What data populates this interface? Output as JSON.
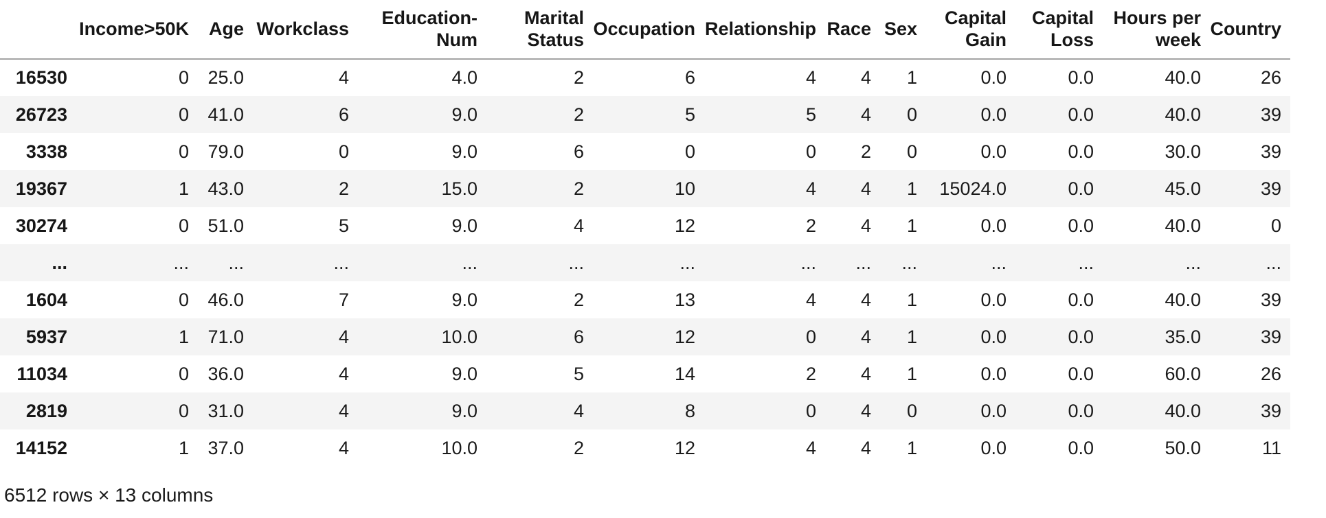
{
  "table": {
    "index_header": "",
    "columns": [
      "Income>50K",
      "Age",
      "Workclass",
      "Education-\nNum",
      "Marital\nStatus",
      "Occupation",
      "Relationship",
      "Race",
      "Sex",
      "Capital\nGain",
      "Capital\nLoss",
      "Hours per\nweek",
      "Country"
    ],
    "rows": [
      {
        "index": "16530",
        "cells": [
          "0",
          "25.0",
          "4",
          "4.0",
          "2",
          "6",
          "4",
          "4",
          "1",
          "0.0",
          "0.0",
          "40.0",
          "26"
        ]
      },
      {
        "index": "26723",
        "cells": [
          "0",
          "41.0",
          "6",
          "9.0",
          "2",
          "5",
          "5",
          "4",
          "0",
          "0.0",
          "0.0",
          "40.0",
          "39"
        ]
      },
      {
        "index": "3338",
        "cells": [
          "0",
          "79.0",
          "0",
          "9.0",
          "6",
          "0",
          "0",
          "2",
          "0",
          "0.0",
          "0.0",
          "30.0",
          "39"
        ]
      },
      {
        "index": "19367",
        "cells": [
          "1",
          "43.0",
          "2",
          "15.0",
          "2",
          "10",
          "4",
          "4",
          "1",
          "15024.0",
          "0.0",
          "45.0",
          "39"
        ]
      },
      {
        "index": "30274",
        "cells": [
          "0",
          "51.0",
          "5",
          "9.0",
          "4",
          "12",
          "2",
          "4",
          "1",
          "0.0",
          "0.0",
          "40.0",
          "0"
        ]
      },
      {
        "index": "...",
        "cells": [
          "...",
          "...",
          "...",
          "...",
          "...",
          "...",
          "...",
          "...",
          "...",
          "...",
          "...",
          "...",
          "..."
        ]
      },
      {
        "index": "1604",
        "cells": [
          "0",
          "46.0",
          "7",
          "9.0",
          "2",
          "13",
          "4",
          "4",
          "1",
          "0.0",
          "0.0",
          "40.0",
          "39"
        ]
      },
      {
        "index": "5937",
        "cells": [
          "1",
          "71.0",
          "4",
          "10.0",
          "6",
          "12",
          "0",
          "4",
          "1",
          "0.0",
          "0.0",
          "35.0",
          "39"
        ]
      },
      {
        "index": "11034",
        "cells": [
          "0",
          "36.0",
          "4",
          "9.0",
          "5",
          "14",
          "2",
          "4",
          "1",
          "0.0",
          "0.0",
          "60.0",
          "26"
        ]
      },
      {
        "index": "2819",
        "cells": [
          "0",
          "31.0",
          "4",
          "9.0",
          "4",
          "8",
          "0",
          "4",
          "0",
          "0.0",
          "0.0",
          "40.0",
          "39"
        ]
      },
      {
        "index": "14152",
        "cells": [
          "1",
          "37.0",
          "4",
          "10.0",
          "2",
          "12",
          "4",
          "4",
          "1",
          "0.0",
          "0.0",
          "50.0",
          "11"
        ]
      }
    ],
    "footer": "6512 rows × 13 columns"
  }
}
